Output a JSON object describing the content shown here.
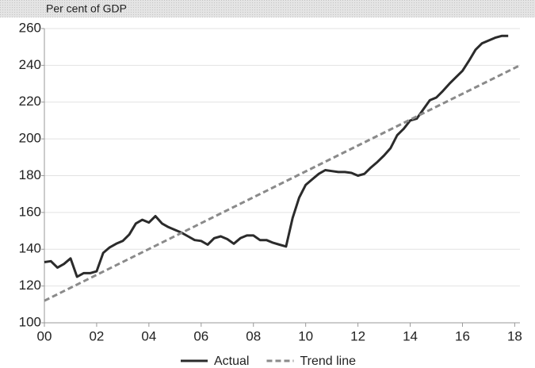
{
  "chart_data": {
    "type": "line",
    "ylabel": "Per cent of GDP",
    "xlim": [
      2000,
      2018.2
    ],
    "xticks": [
      {
        "value": 2000,
        "label": "00"
      },
      {
        "value": 2002,
        "label": "02"
      },
      {
        "value": 2004,
        "label": "04"
      },
      {
        "value": 2006,
        "label": "06"
      },
      {
        "value": 2008,
        "label": "08"
      },
      {
        "value": 2010,
        "label": "10"
      },
      {
        "value": 2012,
        "label": "12"
      },
      {
        "value": 2014,
        "label": "14"
      },
      {
        "value": 2016,
        "label": "16"
      },
      {
        "value": 2018,
        "label": "18"
      }
    ],
    "ylim": [
      100,
      260
    ],
    "yticks": [
      100,
      120,
      140,
      160,
      180,
      200,
      220,
      240,
      260
    ],
    "grid": true,
    "legend": "bottom",
    "series": [
      {
        "name": "Actual",
        "color": "#2b2b2b",
        "dash": false,
        "x": [
          2000,
          2000.25,
          2000.5,
          2000.75,
          2001,
          2001.25,
          2001.5,
          2001.75,
          2002,
          2002.25,
          2002.5,
          2002.75,
          2003,
          2003.25,
          2003.5,
          2003.75,
          2004,
          2004.25,
          2004.5,
          2004.75,
          2005,
          2005.25,
          2005.5,
          2005.75,
          2006,
          2006.25,
          2006.5,
          2006.75,
          2007,
          2007.25,
          2007.5,
          2007.75,
          2008,
          2008.25,
          2008.5,
          2008.75,
          2009,
          2009.25,
          2009.5,
          2009.75,
          2010,
          2010.25,
          2010.5,
          2010.75,
          2011,
          2011.25,
          2011.5,
          2011.75,
          2012,
          2012.25,
          2012.5,
          2012.75,
          2013,
          2013.25,
          2013.5,
          2013.75,
          2014,
          2014.25,
          2014.5,
          2014.75,
          2015,
          2015.25,
          2015.5,
          2015.75,
          2016,
          2016.25,
          2016.5,
          2016.75,
          2017,
          2017.25,
          2017.5,
          2017.75
        ],
        "values": [
          133,
          133.5,
          130,
          132,
          135,
          125,
          127,
          127,
          128,
          138,
          141,
          143,
          144.5,
          148,
          154,
          156,
          154.5,
          158,
          154,
          152,
          150.5,
          149,
          147,
          145,
          144.5,
          142.5,
          146,
          147,
          145.5,
          143,
          146,
          147.5,
          147.5,
          145,
          145,
          143.5,
          142.5,
          141.5,
          157,
          168,
          175,
          178,
          181,
          183,
          182.5,
          182,
          182,
          181.5,
          180,
          181,
          184.5,
          187.5,
          191,
          195,
          202,
          205.5,
          210,
          211,
          216,
          221,
          222.5,
          226,
          230,
          233.5,
          237,
          242.5,
          248.5,
          252,
          253.5,
          255,
          256,
          256
        ]
      },
      {
        "name": "Trend line",
        "color": "#8a8a8a",
        "dash": true,
        "x": [
          2000,
          2018.2
        ],
        "values": [
          112,
          240
        ]
      }
    ]
  }
}
